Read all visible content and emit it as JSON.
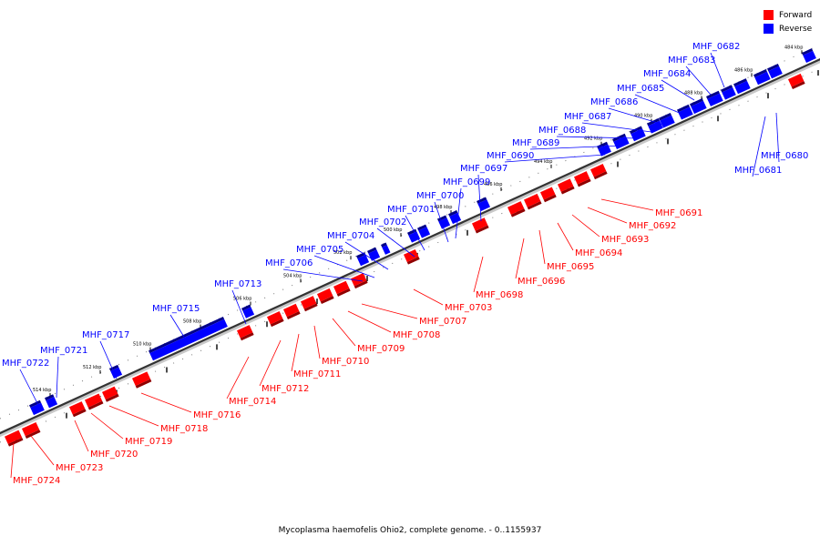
{
  "legend": {
    "forward_label": "Forward",
    "reverse_label": "Reverse",
    "forward_color": "#ff0000",
    "reverse_color": "#0000ff"
  },
  "caption": "Mycoplasma haemofelis Ohio2, complete genome. - 0..1155937",
  "ticks": [
    "484 kbp",
    "486 kbp",
    "488 kbp",
    "490 kbp",
    "492 kbp",
    "494 kbp",
    "496 kbp",
    "498 kbp",
    "500 kbp",
    "502 kbp",
    "504 kbp",
    "506 kbp",
    "508 kbp",
    "510 kbp",
    "512 kbp",
    "514 kbp"
  ],
  "reverse_genes": [
    "MHF_0680",
    "MHF_0681",
    "MHF_0682",
    "MHF_0683",
    "MHF_0684",
    "MHF_0685",
    "MHF_0686",
    "MHF_0687",
    "MHF_0688",
    "MHF_0689",
    "MHF_0690",
    "MHF_0697",
    "MHF_0699",
    "MHF_0700",
    "MHF_0701",
    "MHF_0702",
    "MHF_0704",
    "MHF_0705",
    "MHF_0706",
    "MHF_0713",
    "MHF_0715",
    "MHF_0717",
    "MHF_0721",
    "MHF_0722"
  ],
  "forward_genes": [
    "MHF_0691",
    "MHF_0692",
    "MHF_0693",
    "MHF_0694",
    "MHF_0695",
    "MHF_0696",
    "MHF_0698",
    "MHF_0703",
    "MHF_0707",
    "MHF_0708",
    "MHF_0709",
    "MHF_0710",
    "MHF_0711",
    "MHF_0712",
    "MHF_0714",
    "MHF_0716",
    "MHF_0718",
    "MHF_0719",
    "MHF_0720",
    "MHF_0723",
    "MHF_0724"
  ]
}
